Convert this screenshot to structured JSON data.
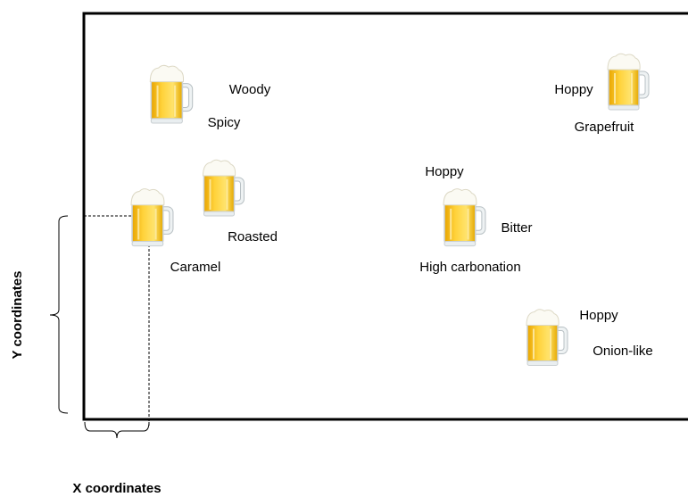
{
  "mugs": [
    {
      "labels": [
        "Woody",
        "Spicy"
      ]
    },
    {
      "labels": [
        "Roasted"
      ]
    },
    {
      "labels": [
        "Caramel"
      ]
    },
    {
      "labels": [
        "Hoppy",
        "Bitter",
        "High carbonation"
      ]
    },
    {
      "labels": [
        "Hoppy",
        "Grapefruit"
      ]
    },
    {
      "labels": [
        "Hoppy",
        "Onion-like"
      ]
    }
  ],
  "axes": {
    "y_label": "Y coordinates",
    "x_label": "X coordinates"
  }
}
